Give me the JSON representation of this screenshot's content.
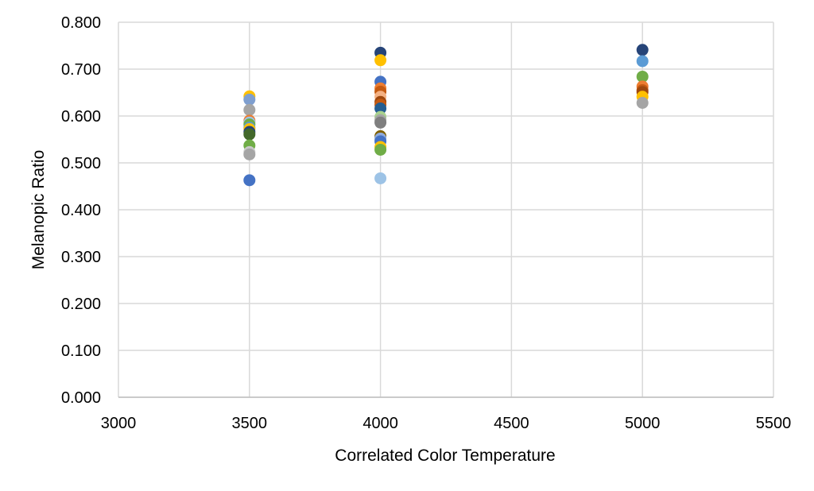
{
  "chart_data": {
    "type": "scatter",
    "xlabel": "Correlated Color Temperature",
    "ylabel": "Melanopic Ratio",
    "xlim": [
      3000,
      5500
    ],
    "ylim": [
      0.0,
      0.8
    ],
    "xticks": [
      "3000",
      "3500",
      "4000",
      "4500",
      "5000",
      "5500"
    ],
    "yticks": [
      "0.000",
      "0.100",
      "0.200",
      "0.300",
      "0.400",
      "0.500",
      "0.600",
      "0.700",
      "0.800"
    ],
    "grid": true,
    "legend": "none",
    "points": [
      {
        "x": 3500,
        "y": 0.642,
        "color": "#FFC000"
      },
      {
        "x": 3500,
        "y": 0.635,
        "color": "#7F9FCF"
      },
      {
        "x": 3500,
        "y": 0.613,
        "color": "#A5A5A5"
      },
      {
        "x": 3500,
        "y": 0.59,
        "color": "#ED7D31"
      },
      {
        "x": 3500,
        "y": 0.586,
        "color": "#9DC3E6"
      },
      {
        "x": 3500,
        "y": 0.582,
        "color": "#70AD47"
      },
      {
        "x": 3500,
        "y": 0.575,
        "color": "#5B9BD5"
      },
      {
        "x": 3500,
        "y": 0.572,
        "color": "#FFC000"
      },
      {
        "x": 3500,
        "y": 0.566,
        "color": "#264478"
      },
      {
        "x": 3500,
        "y": 0.561,
        "color": "#43682B"
      },
      {
        "x": 3500,
        "y": 0.537,
        "color": "#70AD47"
      },
      {
        "x": 3500,
        "y": 0.523,
        "color": "#C9C9C9"
      },
      {
        "x": 3500,
        "y": 0.518,
        "color": "#A5A5A5"
      },
      {
        "x": 3500,
        "y": 0.463,
        "color": "#4472C4"
      },
      {
        "x": 4000,
        "y": 0.735,
        "color": "#264478"
      },
      {
        "x": 4000,
        "y": 0.719,
        "color": "#FFC000"
      },
      {
        "x": 4000,
        "y": 0.673,
        "color": "#4472C4"
      },
      {
        "x": 4000,
        "y": 0.659,
        "color": "#ED7D31"
      },
      {
        "x": 4000,
        "y": 0.652,
        "color": "#C55A11"
      },
      {
        "x": 4000,
        "y": 0.641,
        "color": "#F4B183"
      },
      {
        "x": 4000,
        "y": 0.63,
        "color": "#9E480E"
      },
      {
        "x": 4000,
        "y": 0.624,
        "color": "#C55A11"
      },
      {
        "x": 4000,
        "y": 0.616,
        "color": "#255E91"
      },
      {
        "x": 4000,
        "y": 0.598,
        "color": "#A9D18E"
      },
      {
        "x": 4000,
        "y": 0.591,
        "color": "#A5A5A5"
      },
      {
        "x": 4000,
        "y": 0.586,
        "color": "#7F7F7F"
      },
      {
        "x": 4000,
        "y": 0.557,
        "color": "#7F6000"
      },
      {
        "x": 4000,
        "y": 0.552,
        "color": "#8FAADC"
      },
      {
        "x": 4000,
        "y": 0.546,
        "color": "#4472C4"
      },
      {
        "x": 4000,
        "y": 0.534,
        "color": "#FFC000"
      },
      {
        "x": 4000,
        "y": 0.528,
        "color": "#70AD47"
      },
      {
        "x": 4000,
        "y": 0.467,
        "color": "#9DC3E6"
      },
      {
        "x": 5000,
        "y": 0.741,
        "color": "#264478"
      },
      {
        "x": 5000,
        "y": 0.717,
        "color": "#5B9BD5"
      },
      {
        "x": 5000,
        "y": 0.684,
        "color": "#70AD47"
      },
      {
        "x": 5000,
        "y": 0.663,
        "color": "#ED7D31"
      },
      {
        "x": 5000,
        "y": 0.655,
        "color": "#C55A11"
      },
      {
        "x": 5000,
        "y": 0.651,
        "color": "#9E480E"
      },
      {
        "x": 5000,
        "y": 0.641,
        "color": "#FFC000"
      },
      {
        "x": 5000,
        "y": 0.628,
        "color": "#A5A5A5"
      }
    ]
  }
}
